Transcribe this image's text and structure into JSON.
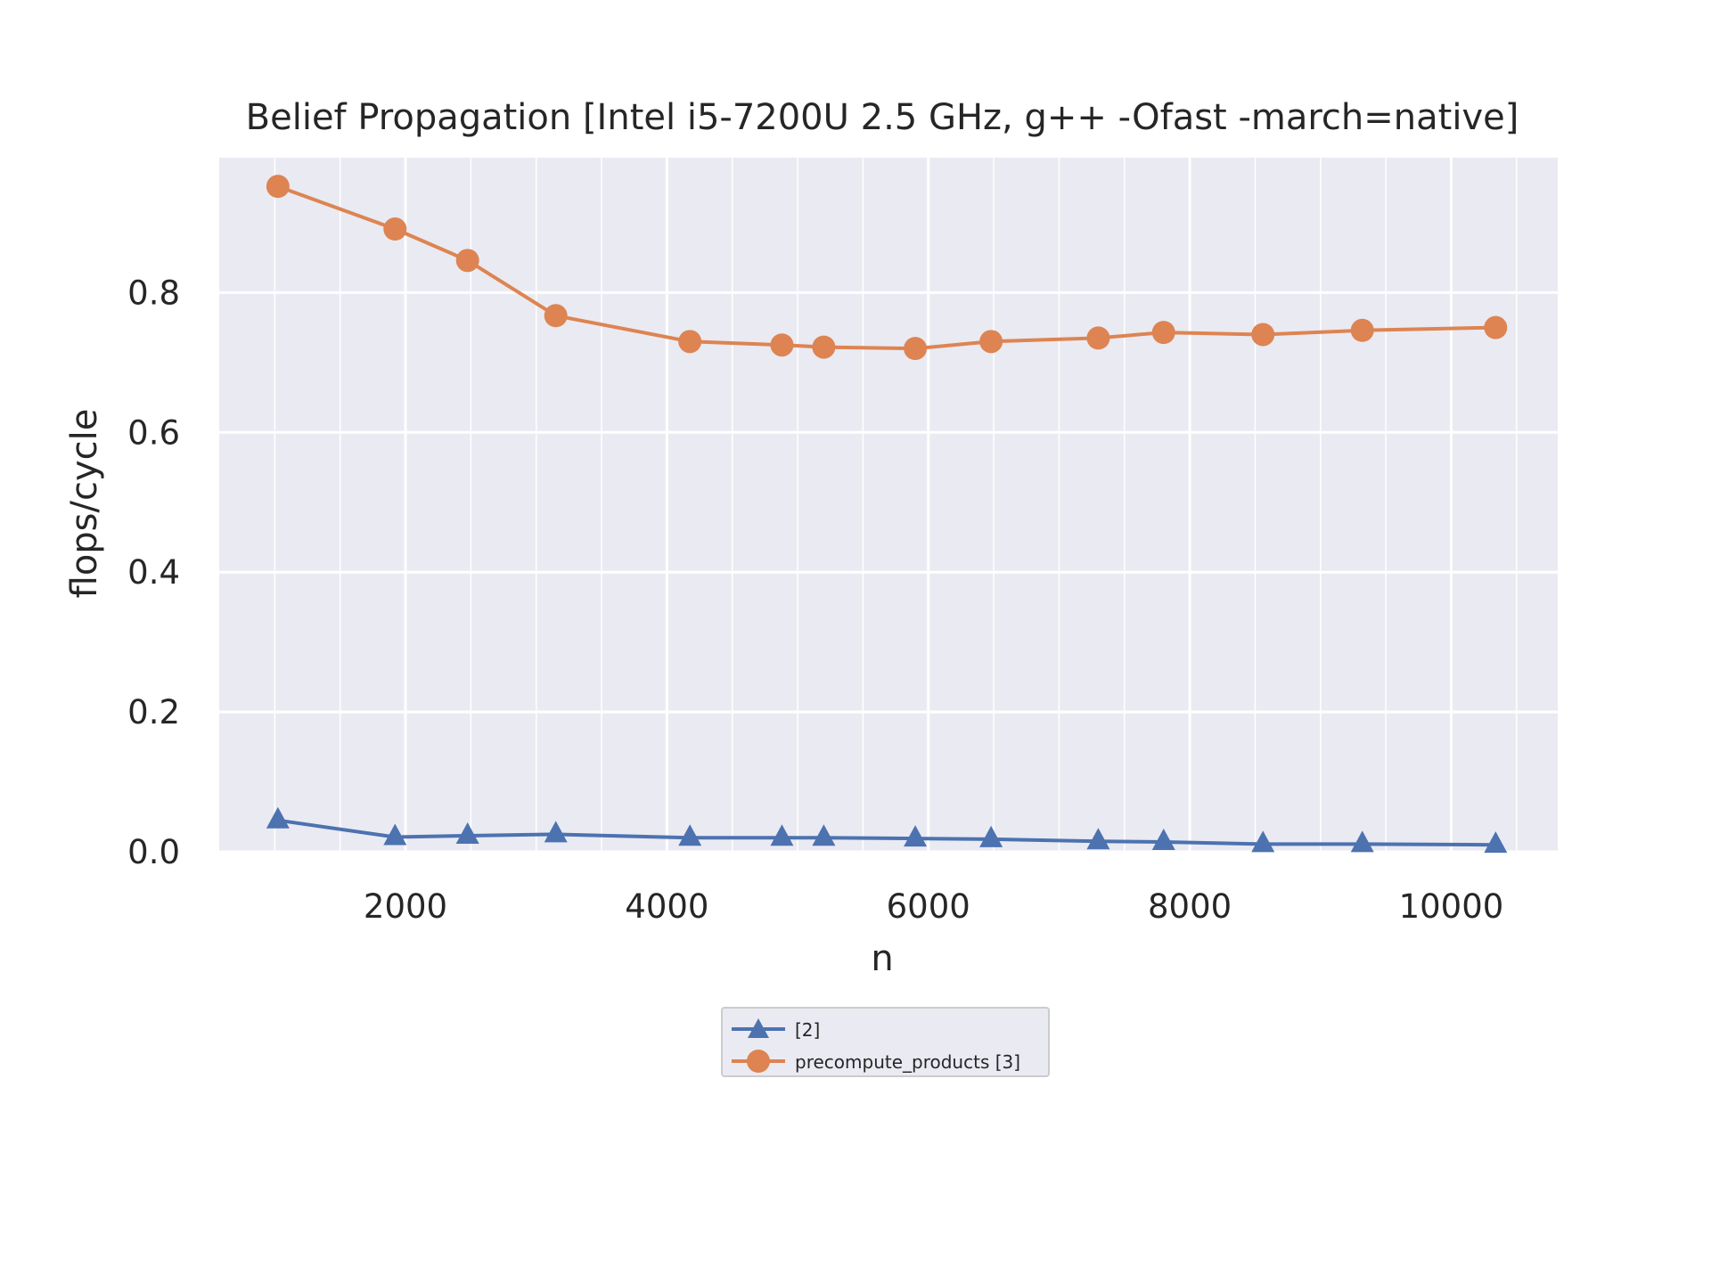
{
  "chart_data": {
    "type": "line",
    "title": "Belief Propagation [Intel i5-7200U 2.5 GHz, g++ -Ofast -march=native]",
    "xlabel": "n",
    "ylabel": "flops/cycle",
    "xlim": [
      575,
      10815
    ],
    "ylim": [
      0,
      0.993
    ],
    "x_major_ticks": [
      2000,
      4000,
      6000,
      8000,
      10000
    ],
    "x_major_tick_labels": [
      "2000",
      "4000",
      "6000",
      "8000",
      "10000"
    ],
    "x_minor_ticks": [
      1000,
      1500,
      2500,
      3000,
      3500,
      4500,
      5000,
      5500,
      6500,
      7000,
      7500,
      8500,
      9000,
      9500,
      10500
    ],
    "y_major_ticks": [
      0.0,
      0.2,
      0.4,
      0.6,
      0.8
    ],
    "y_major_tick_labels": [
      "0.0",
      "0.2",
      "0.4",
      "0.6",
      "0.8"
    ],
    "y_minor_ticks": [],
    "grid": true,
    "legend_position": "below",
    "x": [
      1024,
      1920,
      2475,
      3150,
      4176,
      4880,
      5200,
      5900,
      6480,
      7300,
      7800,
      8560,
      9320,
      10340
    ],
    "series": [
      {
        "name": "[2]",
        "marker": "triangle",
        "color": "#4c72b0",
        "values": [
          0.045,
          0.021,
          0.023,
          0.025,
          0.02,
          0.02,
          0.02,
          0.019,
          0.018,
          0.015,
          0.014,
          0.011,
          0.011,
          0.01
        ]
      },
      {
        "name": "precompute_products [3]",
        "marker": "circle",
        "color": "#dd8452",
        "values": [
          0.952,
          0.891,
          0.846,
          0.767,
          0.73,
          0.725,
          0.722,
          0.72,
          0.73,
          0.735,
          0.743,
          0.74,
          0.746,
          0.75
        ]
      }
    ]
  },
  "colors": {
    "plot_background": "#eaeaf2",
    "grid": "#ffffff",
    "text": "#262626"
  }
}
